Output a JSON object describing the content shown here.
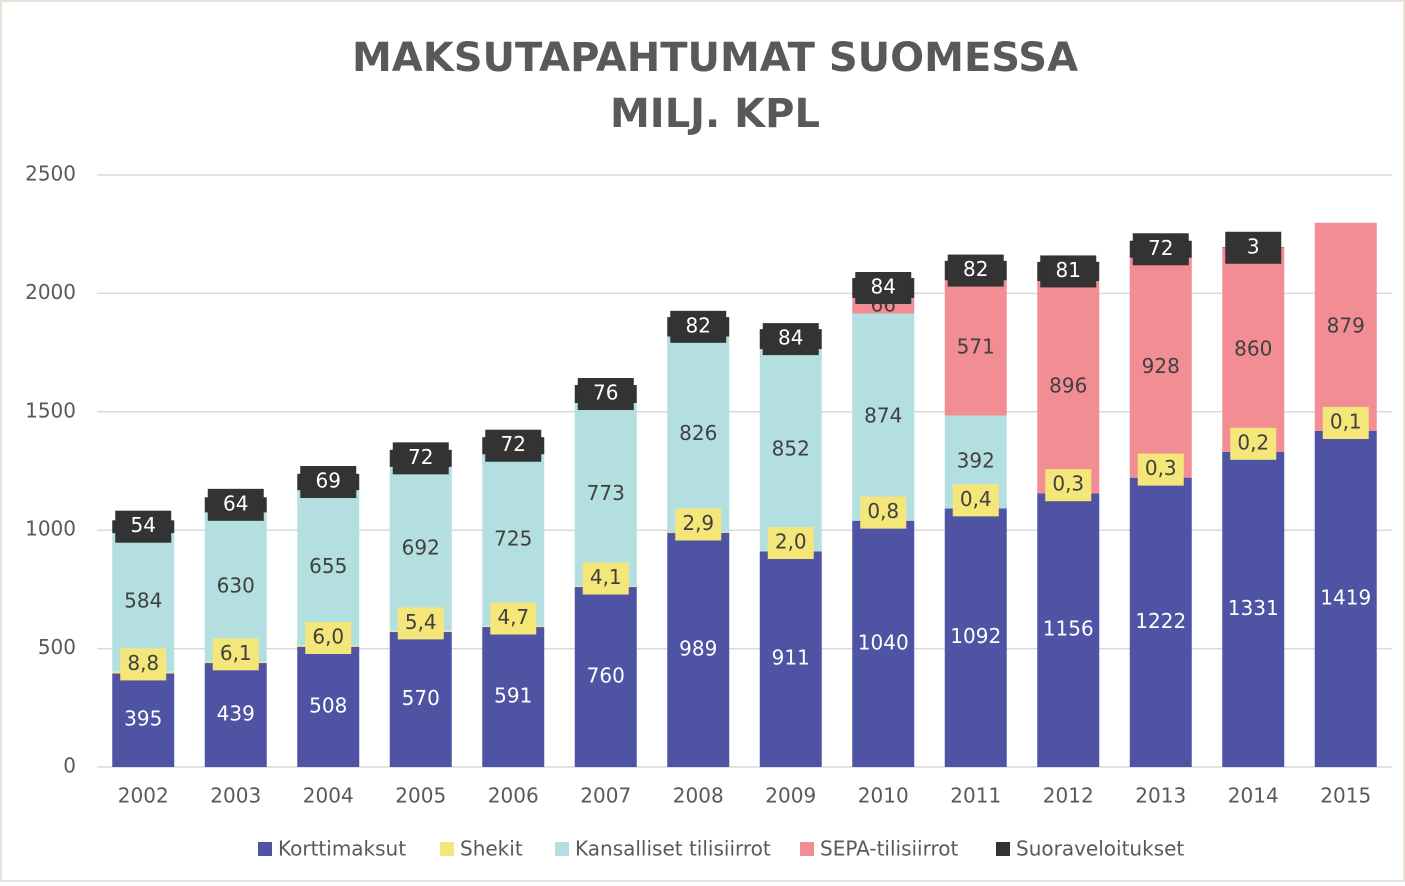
{
  "chart_data": {
    "type": "stacked_bar",
    "title": "MAKSUTAPAHTUMAT SUOMESSA",
    "subtitle": "MILJ. KPL",
    "categories": [
      "2002",
      "2003",
      "2004",
      "2005",
      "2006",
      "2007",
      "2008",
      "2009",
      "2010",
      "2011",
      "2012",
      "2013",
      "2014",
      "2015"
    ],
    "series": [
      {
        "name": "Korttimaksut",
        "color": "#4f53a3",
        "values": [
          395,
          439,
          508,
          570,
          591,
          760,
          989,
          911,
          1040,
          1092,
          1156,
          1222,
          1331,
          1419
        ]
      },
      {
        "name": "Shekit",
        "color": "#f5e67a",
        "values": [
          8.8,
          6.1,
          6.0,
          5.4,
          4.7,
          4.1,
          2.9,
          2.0,
          0.8,
          0.4,
          0.3,
          0.3,
          0.2,
          0.1
        ],
        "value_labels": [
          "8,8",
          "6,1",
          "6,0",
          "5,4",
          "4,7",
          "4,1",
          "2,9",
          "2,0",
          "0,8",
          "0,4",
          "0,3",
          "0,3",
          "0,2",
          "0,1"
        ]
      },
      {
        "name": "Kansalliset tilisiirrot",
        "color": "#b4dfe0",
        "values": [
          584,
          630,
          655,
          692,
          725,
          773,
          826,
          852,
          874,
          392,
          null,
          null,
          null,
          null
        ]
      },
      {
        "name": "SEPA-tilisiirrot",
        "color": "#f28e93",
        "values": [
          null,
          null,
          null,
          null,
          null,
          null,
          null,
          null,
          66,
          571,
          896,
          928,
          860,
          879
        ]
      },
      {
        "name": "Suoraveloitukset",
        "color": "#333333",
        "values": [
          54,
          64,
          69,
          72,
          72,
          76,
          82,
          84,
          84,
          82,
          81,
          72,
          3,
          null
        ]
      }
    ],
    "ylim": [
      0,
      2500
    ],
    "yticks": [
      0,
      500,
      1000,
      1500,
      2000,
      2500
    ],
    "grid": true,
    "legend": "bottom"
  }
}
